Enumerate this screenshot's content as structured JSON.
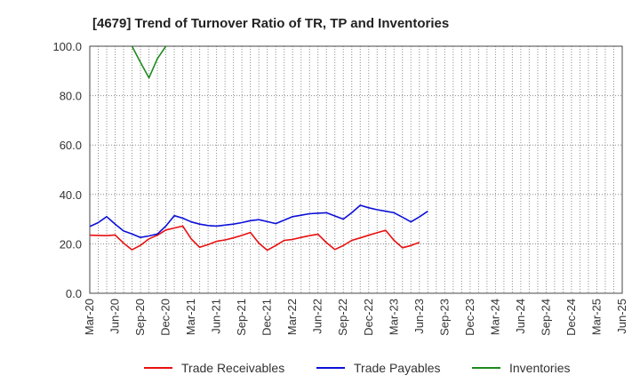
{
  "chart_data": {
    "type": "line",
    "title": "[4679]  Trend of Turnover Ratio of TR, TP and Inventories",
    "xlabel": "",
    "ylabel": "",
    "ylim": [
      0,
      100
    ],
    "y_ticks": [
      "0.0",
      "20.0",
      "40.0",
      "60.0",
      "80.0",
      "100.0"
    ],
    "x_tick_labels": [
      "Mar-20",
      "Jun-20",
      "Sep-20",
      "Dec-20",
      "Mar-21",
      "Jun-21",
      "Sep-21",
      "Dec-21",
      "Mar-22",
      "Jun-22",
      "Sep-22",
      "Dec-22",
      "Mar-23",
      "Jun-23",
      "Sep-23",
      "Dec-23",
      "Mar-24",
      "Jun-24",
      "Sep-24",
      "Dec-24",
      "Mar-25",
      "Jun-25"
    ],
    "grid": true,
    "legend_position": "bottom",
    "series": [
      {
        "name": "Trade Receivables",
        "color": "#e8100f",
        "points": [
          [
            0,
            23.5
          ],
          [
            1,
            23.4
          ],
          [
            2,
            23.3
          ],
          [
            3,
            23.6
          ],
          [
            4,
            20.3
          ],
          [
            5,
            17.6
          ],
          [
            6,
            19.4
          ],
          [
            7,
            22.0
          ],
          [
            8,
            23.5
          ],
          [
            9,
            25.6
          ],
          [
            10,
            26.4
          ],
          [
            11,
            27.2
          ],
          [
            12,
            22.0
          ],
          [
            13,
            18.6
          ],
          [
            14,
            19.7
          ],
          [
            15,
            21.0
          ],
          [
            16,
            21.6
          ],
          [
            17,
            22.4
          ],
          [
            18,
            23.4
          ],
          [
            19,
            24.6
          ],
          [
            20,
            20.3
          ],
          [
            21,
            17.4
          ],
          [
            22,
            19.3
          ],
          [
            23,
            21.4
          ],
          [
            24,
            21.8
          ],
          [
            25,
            22.6
          ],
          [
            26,
            23.3
          ],
          [
            27,
            23.9
          ],
          [
            28,
            20.5
          ],
          [
            29,
            17.7
          ],
          [
            30,
            19.3
          ],
          [
            31,
            21.4
          ],
          [
            32,
            22.4
          ],
          [
            33,
            23.5
          ],
          [
            34,
            24.5
          ],
          [
            35,
            25.5
          ],
          [
            36,
            21.4
          ],
          [
            37,
            18.4
          ],
          [
            38,
            19.3
          ],
          [
            39,
            20.6
          ]
        ]
      },
      {
        "name": "Trade Payables",
        "color": "#0c10d8",
        "points": [
          [
            0,
            27.0
          ],
          [
            1,
            28.6
          ],
          [
            2,
            31.0
          ],
          [
            3,
            28.0
          ],
          [
            4,
            25.2
          ],
          [
            5,
            24.0
          ],
          [
            6,
            22.6
          ],
          [
            7,
            23.2
          ],
          [
            8,
            24.0
          ],
          [
            9,
            27.2
          ],
          [
            10,
            31.4
          ],
          [
            11,
            30.4
          ],
          [
            12,
            28.9
          ],
          [
            13,
            28.0
          ],
          [
            14,
            27.4
          ],
          [
            15,
            27.2
          ],
          [
            16,
            27.6
          ],
          [
            17,
            28.0
          ],
          [
            18,
            28.6
          ],
          [
            19,
            29.4
          ],
          [
            20,
            29.8
          ],
          [
            21,
            29.0
          ],
          [
            22,
            28.2
          ],
          [
            23,
            29.6
          ],
          [
            24,
            31.0
          ],
          [
            25,
            31.6
          ],
          [
            26,
            32.2
          ],
          [
            27,
            32.4
          ],
          [
            28,
            32.6
          ],
          [
            29,
            31.3
          ],
          [
            30,
            30.0
          ],
          [
            31,
            32.6
          ],
          [
            32,
            35.6
          ],
          [
            33,
            34.6
          ],
          [
            34,
            33.8
          ],
          [
            35,
            33.2
          ],
          [
            36,
            32.6
          ],
          [
            37,
            30.8
          ],
          [
            38,
            28.9
          ],
          [
            39,
            30.9
          ],
          [
            40,
            33.2
          ]
        ]
      },
      {
        "name": "Inventories",
        "color": "#1e8a1e",
        "points": [
          [
            5,
            100.0
          ],
          [
            6,
            93.5
          ],
          [
            7,
            87.2
          ],
          [
            8,
            95.0
          ],
          [
            9,
            100.0
          ]
        ]
      }
    ]
  }
}
